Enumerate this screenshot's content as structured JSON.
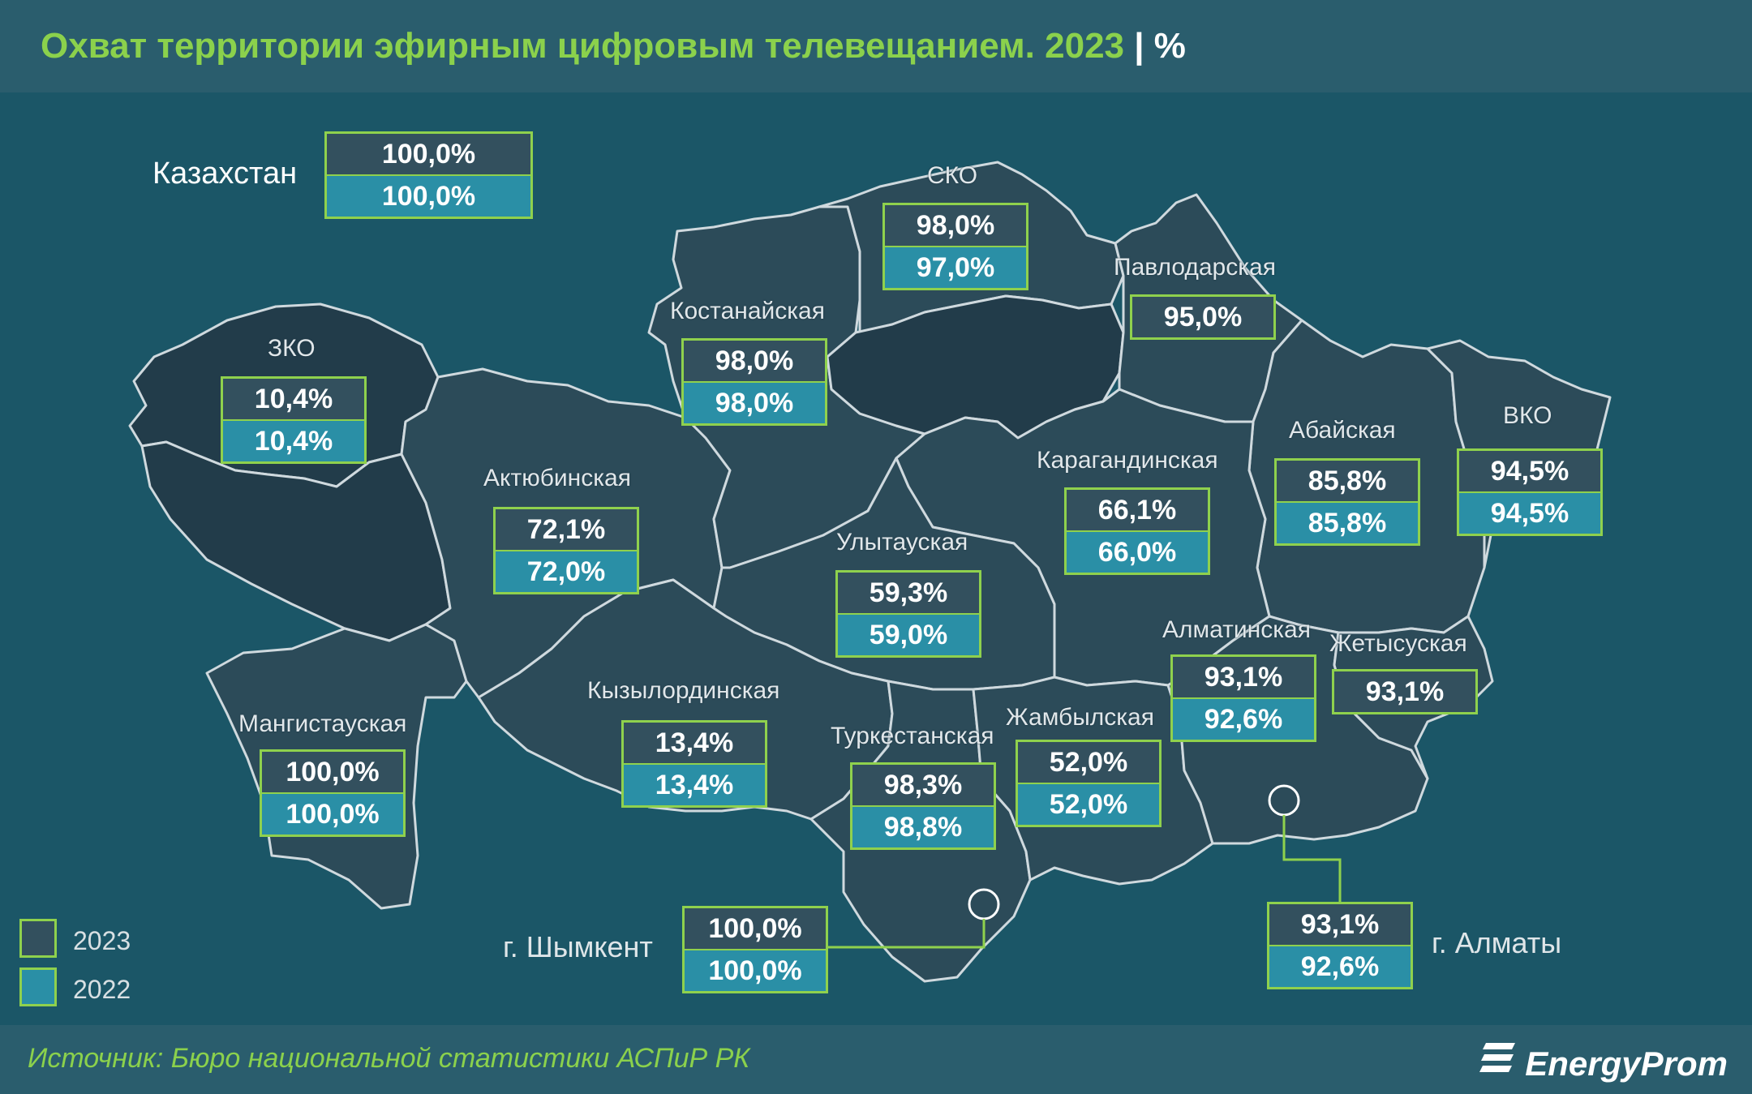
{
  "title": "Охват территории эфирным цифровым телевещанием. 2023",
  "title_unit": " | %",
  "kazakhstan": {
    "label": "Казахстан",
    "v2023": "100,0%",
    "v2022": "100,0%"
  },
  "regions": {
    "sko": {
      "name": "СКО",
      "v2023": "98,0%",
      "v2022": "97,0%"
    },
    "pavlodar": {
      "name": "Павлодарская",
      "v2023": "95,0%"
    },
    "kostanay": {
      "name": "Костанайская",
      "v2023": "98,0%",
      "v2022": "98,0%"
    },
    "zko": {
      "name": "ЗКО",
      "v2023": "10,4%",
      "v2022": "10,4%"
    },
    "aktobe": {
      "name": "Актюбинская",
      "v2023": "72,1%",
      "v2022": "72,0%"
    },
    "karaganda": {
      "name": "Карагандинская",
      "v2023": "66,1%",
      "v2022": "66,0%"
    },
    "abai": {
      "name": "Абайская",
      "v2023": "85,8%",
      "v2022": "85,8%"
    },
    "vko": {
      "name": "ВКО",
      "v2023": "94,5%",
      "v2022": "94,5%"
    },
    "ulytau": {
      "name": "Улытауская",
      "v2023": "59,3%",
      "v2022": "59,0%"
    },
    "almaty_reg": {
      "name": "Алматинская",
      "v2023": "93,1%",
      "v2022": "92,6%"
    },
    "zhetysu": {
      "name": "Жетысуская",
      "v2023": "93,1%"
    },
    "mangystau": {
      "name": "Мангистауская",
      "v2023": "100,0%",
      "v2022": "100,0%"
    },
    "kyzylorda": {
      "name": "Кызылординская",
      "v2023": "13,4%",
      "v2022": "13,4%"
    },
    "turkestan": {
      "name": "Туркестанская",
      "v2023": "98,3%",
      "v2022": "98,8%"
    },
    "zhambyl": {
      "name": "Жамбылская",
      "v2023": "52,0%",
      "v2022": "52,0%"
    }
  },
  "cities": {
    "shymkent": {
      "name": "г. Шымкент",
      "v2023": "100,0%",
      "v2022": "100,0%"
    },
    "almaty": {
      "name": "г. Алматы",
      "v2023": "93,1%",
      "v2022": "92,6%"
    }
  },
  "legend": {
    "y2023": "2023",
    "y2022": "2022"
  },
  "colors": {
    "y2023": "#33505e",
    "y2022": "#2a8fa6",
    "accent": "#8bd14c"
  },
  "source": "Источник: Бюро национальной статистики АСПиР РК",
  "logo": "EnergyProm"
}
